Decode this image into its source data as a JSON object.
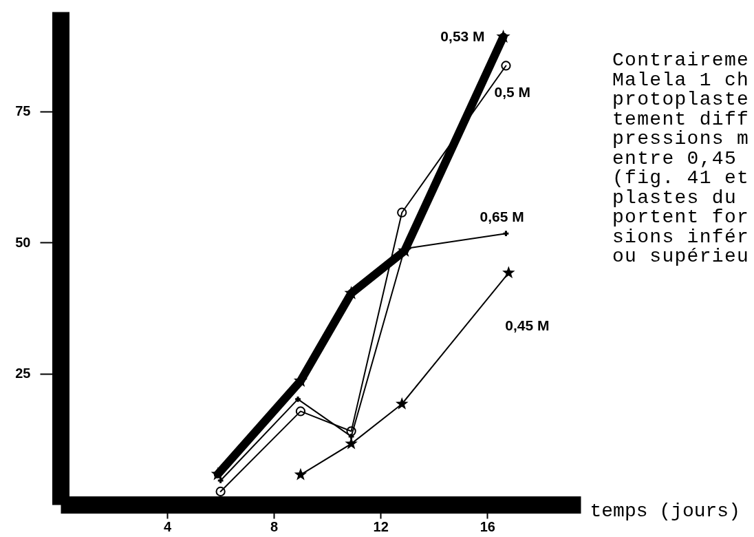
{
  "chart_data": {
    "type": "line",
    "xlabel": "temps (jours)",
    "xlim": [
      0,
      19.5
    ],
    "ylim": [
      0,
      94
    ],
    "xticks": [
      4,
      8,
      12,
      16
    ],
    "yticks": [
      25,
      50,
      75
    ],
    "grid": false,
    "series": [
      {
        "name": "0,53 M",
        "color": "#000000",
        "marker": "star",
        "x": [
          5.9,
          9.0,
          10.9,
          12.9,
          16.6
        ],
        "values": [
          5.8,
          23.6,
          40.3,
          48.4,
          89.2
        ]
      },
      {
        "name": "0,5 M",
        "color": "#000000",
        "marker": "circle",
        "x": [
          6.0,
          9.0,
          10.9,
          12.8,
          16.7
        ],
        "values": [
          2.5,
          17.8,
          14.0,
          55.7,
          83.7
        ]
      },
      {
        "name": "0,65 M",
        "color": "#000000",
        "marker": "cross",
        "x": [
          6.0,
          8.9,
          10.9,
          12.9,
          16.7
        ],
        "values": [
          4.6,
          20.1,
          13.0,
          48.8,
          51.7
        ]
      },
      {
        "name": "0,45 M",
        "color": "#000000",
        "marker": "star",
        "x": [
          9.0,
          10.9,
          12.8,
          16.8
        ],
        "values": [
          5.7,
          11.6,
          19.2,
          44.2
        ]
      }
    ],
    "annotations": [
      "Contraireme",
      "Malela 1 ch",
      "protoplaste",
      "tement diff",
      "pressions m",
      "entre 0,45",
      "(fig. 41 et",
      "plastes du",
      "portent for",
      "sions infér",
      "ou supérieu"
    ]
  }
}
